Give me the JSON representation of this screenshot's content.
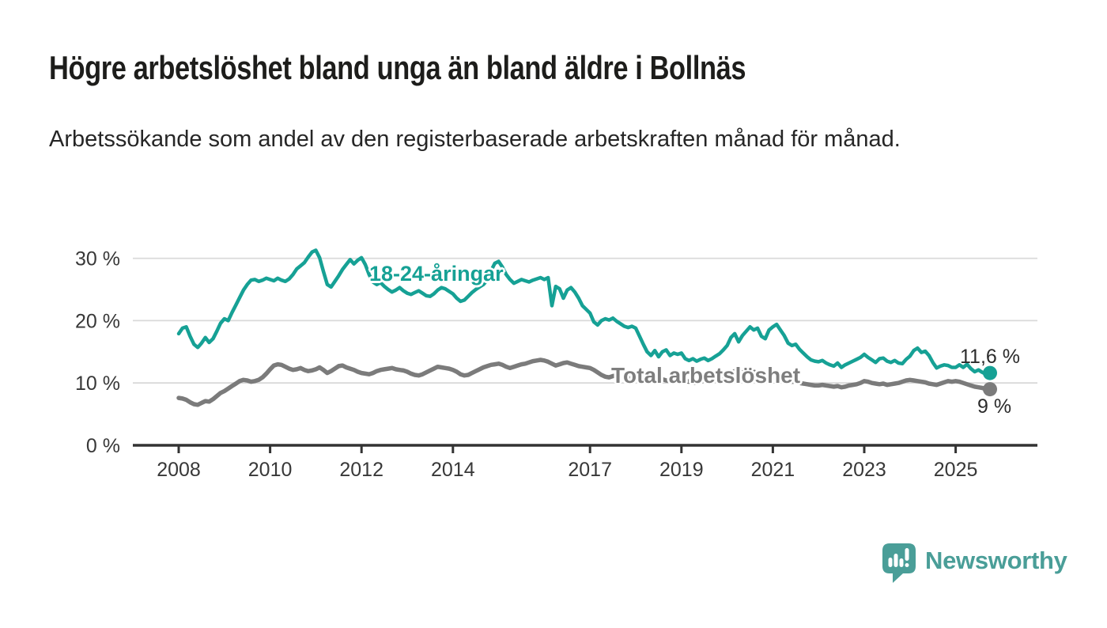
{
  "header": {
    "title": "Högre arbetslöshet bland unga än bland äldre i Bollnäs",
    "subtitle": "Arbetssökande som andel av den registerbaserade arbetskraften månad för månad."
  },
  "chart_data": {
    "type": "line",
    "unit": "percent",
    "frequency": "monthly",
    "x_start": "2008-01",
    "x_end": "2025-10",
    "grid": "horizontal",
    "legend_position": "inline-labels",
    "ylim": [
      0,
      33
    ],
    "y_ticks": [
      {
        "value": 0,
        "label": "0 %"
      },
      {
        "value": 10,
        "label": "10 %"
      },
      {
        "value": 20,
        "label": "20 %"
      },
      {
        "value": 30,
        "label": "30 %"
      }
    ],
    "x_ticks": [
      {
        "year": 2008,
        "label": "2008"
      },
      {
        "year": 2010,
        "label": "2010"
      },
      {
        "year": 2012,
        "label": "2012"
      },
      {
        "year": 2014,
        "label": "2014"
      },
      {
        "year": 2017,
        "label": "2017"
      },
      {
        "year": 2019,
        "label": "2019"
      },
      {
        "year": 2021,
        "label": "2021"
      },
      {
        "year": 2023,
        "label": "2023"
      },
      {
        "year": 2025,
        "label": "2025"
      }
    ],
    "series": [
      {
        "name": "18-24-åringar",
        "color": "#16A195",
        "end_label": "11,6 %",
        "end_value": 11.6,
        "values": [
          17.9,
          18.8,
          19.0,
          17.5,
          16.2,
          15.7,
          16.4,
          17.3,
          16.5,
          17.1,
          18.3,
          19.6,
          20.3,
          20.0,
          21.3,
          22.5,
          23.7,
          24.9,
          25.8,
          26.5,
          26.6,
          26.3,
          26.5,
          26.8,
          26.6,
          26.4,
          26.8,
          26.5,
          26.3,
          26.7,
          27.4,
          28.3,
          28.8,
          29.3,
          30.2,
          31.0,
          31.3,
          30.1,
          27.9,
          25.8,
          25.4,
          26.3,
          27.2,
          28.2,
          29.0,
          29.8,
          29.1,
          29.7,
          30.1,
          29.0,
          27.4,
          26.2,
          25.8,
          26.1,
          25.5,
          25.0,
          24.6,
          24.9,
          25.3,
          24.8,
          24.4,
          24.2,
          24.5,
          24.8,
          24.4,
          24.0,
          23.9,
          24.3,
          24.9,
          25.3,
          25.1,
          24.7,
          24.3,
          23.6,
          23.1,
          23.3,
          23.9,
          24.5,
          25.0,
          25.4,
          25.8,
          26.5,
          28.0,
          29.2,
          29.5,
          28.6,
          27.4,
          26.6,
          26.0,
          26.3,
          26.6,
          26.4,
          26.2,
          26.5,
          26.7,
          26.9,
          26.6,
          26.9,
          22.4,
          25.5,
          25.1,
          23.6,
          24.9,
          25.3,
          24.6,
          23.6,
          22.4,
          21.8,
          21.2,
          19.8,
          19.3,
          20.0,
          20.3,
          20.1,
          20.4,
          19.9,
          19.5,
          19.1,
          18.9,
          19.1,
          18.8,
          17.5,
          16.2,
          15.0,
          14.4,
          15.2,
          14.2,
          15.0,
          15.3,
          14.4,
          14.8,
          14.6,
          14.8,
          13.9,
          13.6,
          13.9,
          13.5,
          13.8,
          14.0,
          13.6,
          13.9,
          14.3,
          14.7,
          15.3,
          16.0,
          17.3,
          17.9,
          16.6,
          17.6,
          18.3,
          19.0,
          18.5,
          18.8,
          17.5,
          17.1,
          18.5,
          19.0,
          19.4,
          18.5,
          17.6,
          16.4,
          16.0,
          16.2,
          15.4,
          14.8,
          14.2,
          13.7,
          13.5,
          13.4,
          13.6,
          13.2,
          12.9,
          12.7,
          13.2,
          12.5,
          12.9,
          13.2,
          13.5,
          13.8,
          14.1,
          14.6,
          14.1,
          13.7,
          13.3,
          13.9,
          14.0,
          13.5,
          13.3,
          13.6,
          13.2,
          13.1,
          13.8,
          14.3,
          15.2,
          15.6,
          14.9,
          15.1,
          14.4,
          13.3,
          12.4,
          12.7,
          12.9,
          12.8,
          12.5,
          12.5,
          12.9,
          12.5,
          13.0,
          12.3,
          11.8,
          12.1,
          11.7,
          11.4,
          11.6
        ]
      },
      {
        "name": "Total arbetslöshet",
        "color": "#7b7b7b",
        "end_label": "9 %",
        "end_value": 9,
        "values": [
          7.6,
          7.5,
          7.3,
          6.9,
          6.6,
          6.5,
          6.8,
          7.1,
          7.0,
          7.4,
          7.9,
          8.4,
          8.7,
          9.1,
          9.5,
          9.9,
          10.3,
          10.5,
          10.4,
          10.2,
          10.3,
          10.5,
          10.9,
          11.5,
          12.2,
          12.8,
          13.0,
          12.9,
          12.6,
          12.3,
          12.1,
          12.2,
          12.4,
          12.1,
          11.9,
          12.0,
          12.2,
          12.5,
          12.1,
          11.6,
          11.9,
          12.3,
          12.7,
          12.8,
          12.5,
          12.3,
          12.1,
          11.8,
          11.6,
          11.5,
          11.4,
          11.6,
          11.9,
          12.1,
          12.2,
          12.3,
          12.4,
          12.2,
          12.1,
          12.0,
          11.8,
          11.5,
          11.3,
          11.2,
          11.4,
          11.7,
          12.0,
          12.3,
          12.6,
          12.5,
          12.4,
          12.3,
          12.1,
          11.8,
          11.4,
          11.2,
          11.3,
          11.6,
          11.9,
          12.2,
          12.5,
          12.7,
          12.9,
          13.0,
          13.1,
          12.9,
          12.6,
          12.4,
          12.6,
          12.8,
          13.0,
          13.1,
          13.3,
          13.5,
          13.6,
          13.7,
          13.6,
          13.4,
          13.1,
          12.8,
          13.0,
          13.2,
          13.3,
          13.1,
          12.9,
          12.7,
          12.6,
          12.5,
          12.4,
          12.1,
          11.7,
          11.3,
          11.0,
          10.9,
          11.1,
          11.2,
          11.0,
          10.8,
          10.7,
          10.8,
          10.9,
          10.7,
          10.5,
          10.3,
          10.2,
          10.4,
          10.5,
          10.6,
          10.4,
          10.3,
          10.4,
          10.5,
          10.6,
          10.4,
          10.2,
          10.1,
          10.0,
          10.2,
          10.4,
          10.3,
          10.2,
          10.4,
          10.6,
          10.9,
          11.2,
          11.6,
          11.9,
          11.7,
          11.8,
          11.9,
          12.0,
          11.8,
          11.6,
          11.3,
          11.1,
          11.0,
          10.9,
          10.8,
          10.6,
          10.4,
          10.3,
          10.2,
          10.2,
          10.0,
          9.9,
          9.8,
          9.7,
          9.6,
          9.6,
          9.7,
          9.6,
          9.5,
          9.4,
          9.5,
          9.3,
          9.4,
          9.6,
          9.7,
          9.8,
          10.0,
          10.3,
          10.2,
          10.0,
          9.9,
          9.8,
          9.9,
          9.7,
          9.8,
          9.9,
          10.0,
          10.2,
          10.4,
          10.5,
          10.4,
          10.3,
          10.2,
          10.1,
          9.9,
          9.8,
          9.7,
          9.9,
          10.1,
          10.3,
          10.2,
          10.3,
          10.2,
          10.0,
          9.8,
          9.6,
          9.4,
          9.3,
          9.2,
          9.0,
          9.0
        ]
      }
    ]
  },
  "colors": {
    "young_line": "#16A195",
    "total_line": "#7b7b7b",
    "gridline": "#d9d9d9",
    "axis": "#333333",
    "tick_text": "#383838",
    "title_text": "#1d1d1b",
    "value_label_text": "#2b2b2b",
    "brand_teal": "#4A9E98"
  },
  "footer": {
    "brand": "Newsworthy",
    "logo_icon": "speech-bubble-bar-chart-exclamation-icon"
  }
}
